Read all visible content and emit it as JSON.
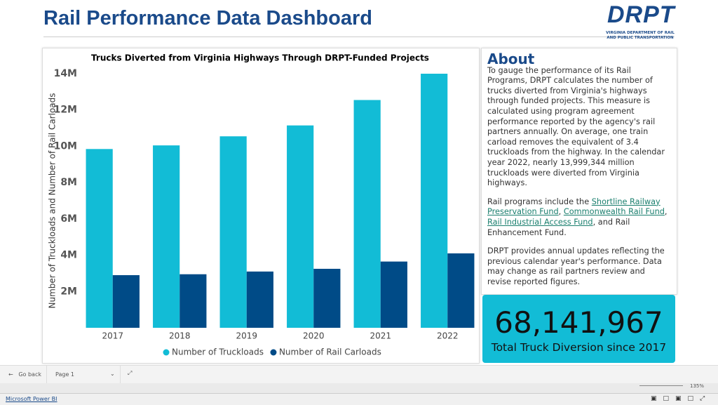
{
  "header": {
    "title": "Rail Performance Data Dashboard",
    "logo": "DRPT",
    "logo_subtitle": [
      "VIRGINIA DEPARTMENT OF RAIL",
      "AND PUBLIC TRANSPORTATION"
    ]
  },
  "chart_data": {
    "type": "bar",
    "title": "Trucks Diverted from Virginia Highways Through DRPT-Funded Projects",
    "y_label": "Number of Truckloads and Number of Rail Carloads",
    "categories": [
      "2017",
      "2018",
      "2019",
      "2020",
      "2021",
      "2022"
    ],
    "series": [
      {
        "name": "Number of Truckloads",
        "color": "#12bcd6",
        "values": [
          9850000,
          10050000,
          10550000,
          11150000,
          12550000,
          13999344
        ]
      },
      {
        "name": "Number of Rail Carloads",
        "color": "#004b87",
        "values": [
          2900000,
          2950000,
          3100000,
          3250000,
          3650000,
          4100000
        ]
      }
    ],
    "ylim": [
      0,
      14000000
    ],
    "yticks": [
      {
        "value": 2000000,
        "label": "2M"
      },
      {
        "value": 4000000,
        "label": "4M"
      },
      {
        "value": 6000000,
        "label": "6M"
      },
      {
        "value": 8000000,
        "label": "8M"
      },
      {
        "value": 10000000,
        "label": "10M"
      },
      {
        "value": 12000000,
        "label": "12M"
      },
      {
        "value": 14000000,
        "label": "14M"
      }
    ],
    "legend": "bottom",
    "grid": false
  },
  "about": {
    "title": "About",
    "paragraph1": "To gauge the performance of its Rail Programs, DRPT calculates the number of trucks diverted from Virginia's highways through funded projects. This measure is calculated using program agreement performance reported by the agency's rail partners annually. On average, one train carload removes the equivalent of 3.4 truckloads from the highway. In the calendar year 2022, nearly 13,999,344 million truckloads were diverted from Virginia highways.",
    "paragraph2": [
      "Rail programs include the ",
      "Shortline Railway Preservation Fund",
      ", ",
      "Commonwealth Rail Fund",
      ", ",
      "Rail Industrial Access Fund",
      ", and Rail Enhancement Fund."
    ],
    "paragraph3": "DRPT provides annual updates reflecting the previous calendar year's performance. Data may change as rail partners review and revise reported figures."
  },
  "kpi": {
    "value": "68,141,967",
    "label": "Total Truck Diversion since 2017"
  },
  "footer": {
    "back": "Go back",
    "page": "Page 1",
    "zoom": "135%",
    "brand": "Microsoft Power BI"
  }
}
